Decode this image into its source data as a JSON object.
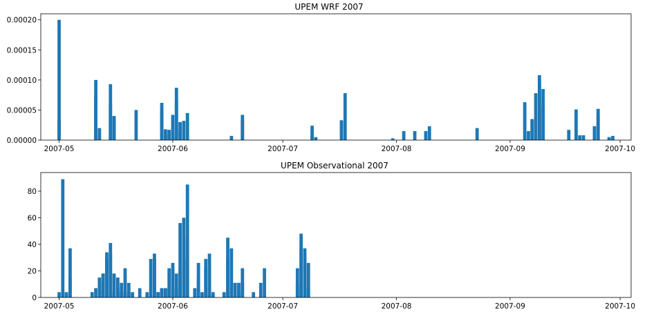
{
  "chart_data": [
    {
      "type": "bar",
      "title": "UPEM WRF 2007",
      "xlabel": "",
      "ylabel": "",
      "bar_color": "#1f77b4",
      "xlim": [
        "2007-04-26",
        "2007-10-04"
      ],
      "ylim": [
        0,
        0.00021
      ],
      "yticks": [
        0.0,
        5e-05,
        0.0001,
        0.00015,
        0.0002
      ],
      "ytick_labels": [
        "0.00000",
        "0.00005",
        "0.00010",
        "0.00015",
        "0.00020"
      ],
      "xticks": [
        "2007-05-01",
        "2007-06-01",
        "2007-07-01",
        "2007-08-01",
        "2007-09-01",
        "2007-10-01"
      ],
      "xtick_labels": [
        "2007-05",
        "2007-06",
        "2007-07",
        "2007-08",
        "2007-09",
        "2007-10"
      ],
      "points": [
        [
          "2007-05-01",
          0.0002
        ],
        [
          "2007-05-01",
          3.3e-05
        ],
        [
          "2007-05-11",
          0.0001
        ],
        [
          "2007-05-11",
          7.2e-05
        ],
        [
          "2007-05-12",
          2e-05
        ],
        [
          "2007-05-15",
          9.3e-05
        ],
        [
          "2007-05-15",
          6e-05
        ],
        [
          "2007-05-16",
          4e-05
        ],
        [
          "2007-05-16",
          4e-05
        ],
        [
          "2007-05-22",
          5e-05
        ],
        [
          "2007-05-29",
          5e-05
        ],
        [
          "2007-05-29",
          6.2e-05
        ],
        [
          "2007-05-30",
          1e-05
        ],
        [
          "2007-05-30",
          1.8e-05
        ],
        [
          "2007-05-31",
          1.7e-05
        ],
        [
          "2007-05-31",
          1.7e-05
        ],
        [
          "2007-06-01",
          5e-06
        ],
        [
          "2007-06-01",
          4.2e-05
        ],
        [
          "2007-06-02",
          6.5e-05
        ],
        [
          "2007-06-02",
          8.7e-05
        ],
        [
          "2007-06-03",
          1.5e-05
        ],
        [
          "2007-06-03",
          3e-05
        ],
        [
          "2007-06-04",
          3.2e-05
        ],
        [
          "2007-06-05",
          4.5e-05
        ],
        [
          "2007-06-17",
          7e-06
        ],
        [
          "2007-06-20",
          3.3e-05
        ],
        [
          "2007-06-20",
          4.2e-05
        ],
        [
          "2007-07-09",
          2.4e-05
        ],
        [
          "2007-07-09",
          8e-06
        ],
        [
          "2007-07-10",
          5e-06
        ],
        [
          "2007-07-17",
          3.3e-05
        ],
        [
          "2007-07-18",
          7.8e-05
        ],
        [
          "2007-07-31",
          3e-06
        ],
        [
          "2007-08-03",
          1.5e-05
        ],
        [
          "2007-08-06",
          1.5e-05
        ],
        [
          "2007-08-09",
          1.5e-05
        ],
        [
          "2007-08-10",
          2.3e-05
        ],
        [
          "2007-08-23",
          2e-05
        ],
        [
          "2007-09-05",
          6.3e-05
        ],
        [
          "2007-09-06",
          1.5e-05
        ],
        [
          "2007-09-07",
          3.1e-05
        ],
        [
          "2007-09-07",
          3.5e-05
        ],
        [
          "2007-09-08",
          7.8e-05
        ],
        [
          "2007-09-09",
          0.000108
        ],
        [
          "2007-09-09",
          9.7e-05
        ],
        [
          "2007-09-10",
          8.5e-05
        ],
        [
          "2007-09-10",
          5.5e-05
        ],
        [
          "2007-09-17",
          1.7e-05
        ],
        [
          "2007-09-19",
          5.1e-05
        ],
        [
          "2007-09-20",
          8e-06
        ],
        [
          "2007-09-21",
          8e-06
        ],
        [
          "2007-09-24",
          2.3e-05
        ],
        [
          "2007-09-25",
          5.2e-05
        ],
        [
          "2007-09-25",
          4.2e-05
        ],
        [
          "2007-09-28",
          5e-06
        ],
        [
          "2007-09-29",
          7e-06
        ]
      ]
    },
    {
      "type": "bar",
      "title": "UPEM Observational 2007",
      "xlabel": "",
      "ylabel": "",
      "bar_color": "#1f77b4",
      "xlim": [
        "2007-04-26",
        "2007-10-04"
      ],
      "ylim": [
        0,
        94
      ],
      "yticks": [
        0,
        20,
        40,
        60,
        80
      ],
      "ytick_labels": [
        "0",
        "20",
        "40",
        "60",
        "80"
      ],
      "xticks": [
        "2007-05-01",
        "2007-06-01",
        "2007-07-01",
        "2007-08-01",
        "2007-09-01",
        "2007-10-01"
      ],
      "xtick_labels": [
        "2007-05",
        "2007-06",
        "2007-07",
        "2007-08",
        "2007-09",
        "2007-10"
      ],
      "points": [
        [
          "2007-05-01",
          4
        ],
        [
          "2007-05-02",
          4
        ],
        [
          "2007-05-02",
          89
        ],
        [
          "2007-05-03",
          4
        ],
        [
          "2007-05-04",
          37
        ],
        [
          "2007-05-04",
          15
        ],
        [
          "2007-05-10",
          4
        ],
        [
          "2007-05-11",
          7
        ],
        [
          "2007-05-12",
          11
        ],
        [
          "2007-05-12",
          15
        ],
        [
          "2007-05-13",
          18
        ],
        [
          "2007-05-13",
          18
        ],
        [
          "2007-05-14",
          34
        ],
        [
          "2007-05-14",
          29
        ],
        [
          "2007-05-15",
          33
        ],
        [
          "2007-05-15",
          41
        ],
        [
          "2007-05-16",
          18
        ],
        [
          "2007-05-16",
          4
        ],
        [
          "2007-05-17",
          7
        ],
        [
          "2007-05-17",
          15
        ],
        [
          "2007-05-18",
          4
        ],
        [
          "2007-05-18",
          11
        ],
        [
          "2007-05-19",
          22
        ],
        [
          "2007-05-19",
          4
        ],
        [
          "2007-05-20",
          11
        ],
        [
          "2007-05-20",
          4
        ],
        [
          "2007-05-21",
          4
        ],
        [
          "2007-05-23",
          7
        ],
        [
          "2007-05-25",
          4
        ],
        [
          "2007-05-26",
          29
        ],
        [
          "2007-05-27",
          33
        ],
        [
          "2007-05-27",
          29
        ],
        [
          "2007-05-28",
          4
        ],
        [
          "2007-05-28",
          4
        ],
        [
          "2007-05-29",
          7
        ],
        [
          "2007-05-29",
          7
        ],
        [
          "2007-05-30",
          7
        ],
        [
          "2007-05-30",
          7
        ],
        [
          "2007-05-31",
          7
        ],
        [
          "2007-05-31",
          22
        ],
        [
          "2007-06-01",
          26
        ],
        [
          "2007-06-01",
          22
        ],
        [
          "2007-06-02",
          7
        ],
        [
          "2007-06-02",
          18
        ],
        [
          "2007-06-03",
          22
        ],
        [
          "2007-06-03",
          56
        ],
        [
          "2007-06-04",
          45
        ],
        [
          "2007-06-04",
          60
        ],
        [
          "2007-06-05",
          85
        ],
        [
          "2007-06-05",
          29
        ],
        [
          "2007-06-07",
          7
        ],
        [
          "2007-06-08",
          26
        ],
        [
          "2007-06-08",
          15
        ],
        [
          "2007-06-09",
          4
        ],
        [
          "2007-06-10",
          22
        ],
        [
          "2007-06-10",
          29
        ],
        [
          "2007-06-11",
          33
        ],
        [
          "2007-06-11",
          7
        ],
        [
          "2007-06-12",
          4
        ],
        [
          "2007-06-15",
          4
        ],
        [
          "2007-06-16",
          29
        ],
        [
          "2007-06-16",
          45
        ],
        [
          "2007-06-17",
          37
        ],
        [
          "2007-06-17",
          11
        ],
        [
          "2007-06-18",
          11
        ],
        [
          "2007-06-19",
          4
        ],
        [
          "2007-06-19",
          11
        ],
        [
          "2007-06-20",
          11
        ],
        [
          "2007-06-20",
          22
        ],
        [
          "2007-06-23",
          4
        ],
        [
          "2007-06-25",
          11
        ],
        [
          "2007-06-26",
          22
        ],
        [
          "2007-07-05",
          11
        ],
        [
          "2007-07-05",
          22
        ],
        [
          "2007-07-06",
          48
        ],
        [
          "2007-07-06",
          37
        ],
        [
          "2007-07-07",
          37
        ],
        [
          "2007-07-07",
          33
        ],
        [
          "2007-07-08",
          26
        ],
        [
          "2007-07-08",
          7
        ]
      ]
    }
  ]
}
